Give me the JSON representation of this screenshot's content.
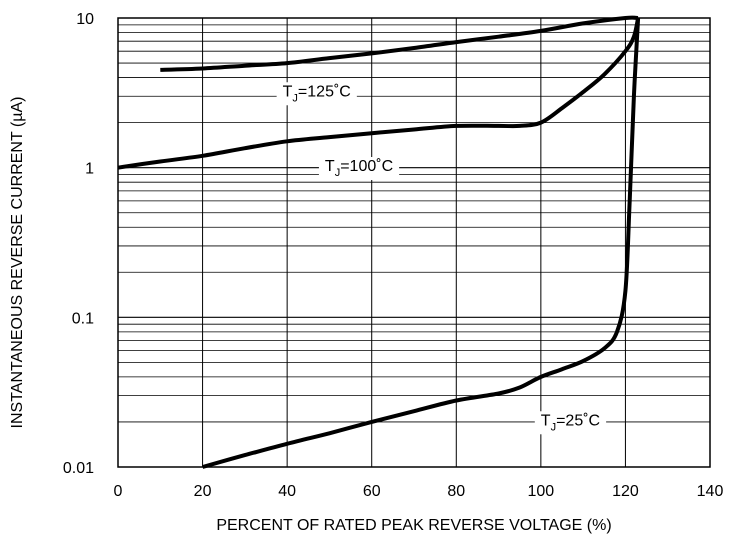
{
  "chart_data": {
    "type": "line",
    "title": "",
    "xlabel": "PERCENT OF RATED PEAK REVERSE VOLTAGE (%)",
    "ylabel": "INSTANTANEOUS REVERSE CURRENT (µA)",
    "xlim": [
      0,
      140
    ],
    "ylim": [
      0.01,
      10
    ],
    "yscale": "log",
    "grid": true,
    "legend": "none",
    "x_ticks": [
      0,
      20,
      40,
      60,
      80,
      100,
      120,
      140
    ],
    "x_tick_labels": [
      "0",
      "20",
      "40",
      "60",
      "80",
      "100",
      "120",
      "140"
    ],
    "y_ticks": [
      0.01,
      0.1,
      1,
      10
    ],
    "y_tick_labels": [
      "0.01",
      "0.1",
      "1",
      "10"
    ],
    "series": [
      {
        "name": "T_J=125°C",
        "label_main": "T",
        "label_sub": "J",
        "label_rest": "=125˚C",
        "label_at": [
          47,
          3.0
        ],
        "x": [
          10,
          20,
          30,
          40,
          50,
          60,
          70,
          80,
          90,
          100,
          110,
          120,
          123
        ],
        "y": [
          4.5,
          4.6,
          4.8,
          5.0,
          5.4,
          5.8,
          6.3,
          6.9,
          7.5,
          8.2,
          9.2,
          10.0,
          10.0
        ]
      },
      {
        "name": "T_J=100°C",
        "label_main": "T",
        "label_sub": "J",
        "label_rest": "=100˚C",
        "label_at": [
          57,
          0.95
        ],
        "x": [
          0,
          10,
          20,
          30,
          40,
          50,
          60,
          70,
          80,
          90,
          95,
          100,
          105,
          110,
          115,
          120,
          122,
          123
        ],
        "y": [
          1.0,
          1.1,
          1.2,
          1.35,
          1.5,
          1.6,
          1.7,
          1.8,
          1.9,
          1.9,
          1.9,
          2.0,
          2.5,
          3.2,
          4.2,
          6.0,
          7.5,
          10.0
        ]
      },
      {
        "name": "T_J=25°C",
        "label_main": "T",
        "label_sub": "J",
        "label_rest": "=25˚C",
        "label_at": [
          107,
          0.019
        ],
        "x": [
          20,
          30,
          40,
          50,
          60,
          70,
          80,
          90,
          95,
          100,
          105,
          110,
          115,
          118,
          120,
          121,
          122,
          123
        ],
        "y": [
          0.01,
          0.012,
          0.0143,
          0.0168,
          0.02,
          0.0236,
          0.0278,
          0.031,
          0.034,
          0.04,
          0.045,
          0.051,
          0.062,
          0.08,
          0.15,
          0.6,
          3.0,
          10.0
        ]
      }
    ]
  }
}
